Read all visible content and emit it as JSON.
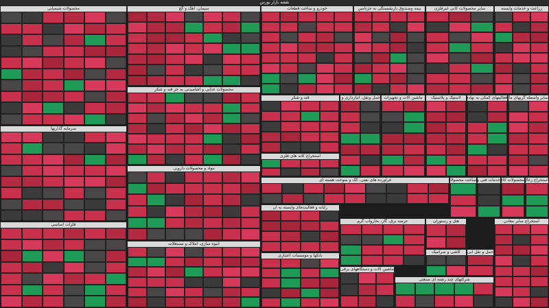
{
  "header": {
    "title": "نقشه بازار بورس"
  },
  "sectors": [
    {
      "name": "محصولات شیمیایی"
    },
    {
      "name": "سیمان، آهک و گچ"
    },
    {
      "name": "خودرو و ساخت قطعات"
    },
    {
      "name": "بیمه وصندوق بازنشستگی به جزتامین"
    },
    {
      "name": "سایر محصولات کانی غیرفلزی"
    },
    {
      "name": "زراعت و خدمات وابسته"
    },
    {
      "name": "محصولات غذایی و آشامیدنی به جز قند و شکر"
    },
    {
      "name": "سرمایه گذاریها"
    },
    {
      "name": "مواد و محصولات دارویی"
    },
    {
      "name": "فلزات اساسی"
    },
    {
      "name": "انبوه سازی، املاک و مستغلات"
    },
    {
      "name": "قند و شکر"
    },
    {
      "name": "حمل ونقل، انبارداری و ارتباطات"
    },
    {
      "name": "ماشین آلات و تجهیزات"
    },
    {
      "name": "لاستیک و پلاستیک"
    },
    {
      "name": "فعالیتهای کمکی به نهادهای مالی"
    },
    {
      "name": "سایر واسطه گریهای مالی"
    },
    {
      "name": "استخراج کانه های فلزی"
    },
    {
      "name": "فراورده های نفتی، کک و سوخت هسته ای"
    },
    {
      "name": "ساخت محصولات فلزی"
    },
    {
      "name": "خدمات فنی و مهندسی"
    },
    {
      "name": "محصولات کاغذی"
    },
    {
      "name": "استخراج زغال سنگ"
    },
    {
      "name": "رایانه و فعالیت‌های وابسته به آن"
    },
    {
      "name": "عرضه برق، گاز، بخاروآب گرم"
    },
    {
      "name": "هتل و رستوران"
    },
    {
      "name": "کاشی و سرامیک"
    },
    {
      "name": "حمل و نقل آبی"
    },
    {
      "name": "استخراج سایر معادن"
    },
    {
      "name": "بانکها و موسسات اعتباری"
    },
    {
      "name": "ماشین آلات و دستگاههای برقی"
    },
    {
      "name": "شرکتهای چند رشته ای صنعتی"
    }
  ]
}
